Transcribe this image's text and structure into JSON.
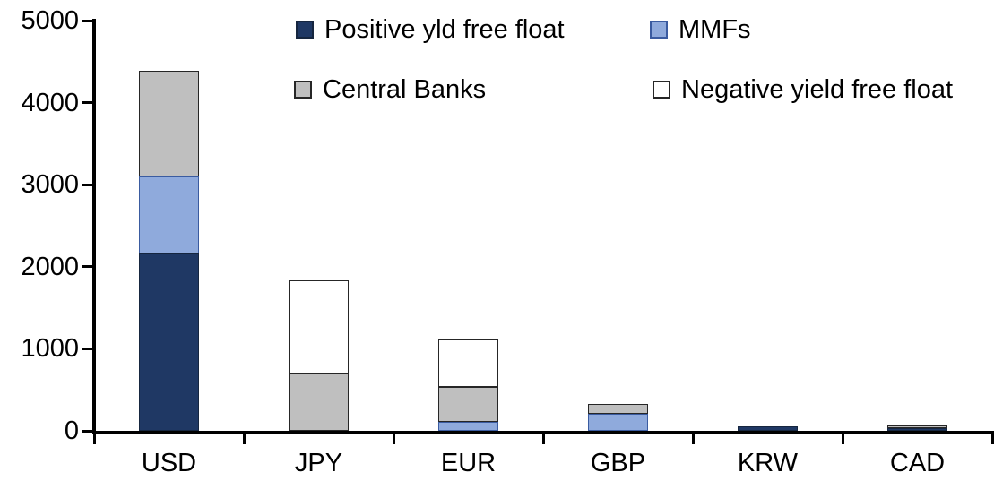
{
  "chart_data": {
    "type": "bar",
    "stacked": true,
    "title": "",
    "xlabel": "",
    "ylabel": "",
    "categories": [
      "USD",
      "JPY",
      "EUR",
      "GBP",
      "KRW",
      "CAD"
    ],
    "series": [
      {
        "name": "Positive yld free float",
        "color": "#1F3864",
        "border": "#16263F",
        "values": [
          2160,
          0,
          0,
          0,
          50,
          30
        ]
      },
      {
        "name": "MMFs",
        "color": "#8FAADC",
        "border": "#3A5BA0",
        "values": [
          940,
          0,
          110,
          210,
          0,
          0
        ]
      },
      {
        "name": "Central Banks",
        "color": "#BFBFBF",
        "border": "#262626",
        "values": [
          1290,
          700,
          425,
          120,
          0,
          40
        ]
      },
      {
        "name": "Negative yield free float",
        "color": "#FFFFFF",
        "border": "#262626",
        "values": [
          0,
          1140,
          580,
          0,
          0,
          0
        ]
      }
    ],
    "ylim": [
      0,
      5000
    ],
    "yticks": [
      0,
      1000,
      2000,
      3000,
      4000,
      5000
    ],
    "grid": false,
    "legend_position": "top",
    "axis_color": "#000000",
    "background_color": "#FFFFFF"
  }
}
